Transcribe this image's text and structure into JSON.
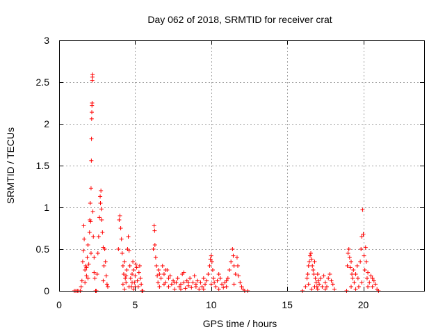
{
  "chart_data": {
    "type": "scatter",
    "title": "Day 062 of 2018, SRMTID for receiver crat",
    "xlabel": "GPS time / hours",
    "ylabel": "SRMTID / TECUs",
    "xlim": [
      0,
      24
    ],
    "ylim": [
      0,
      3
    ],
    "x_ticks": [
      0,
      5,
      10,
      15,
      20
    ],
    "x_tick_labels": [
      "0",
      "5",
      "10",
      "15",
      "20"
    ],
    "y_ticks": [
      0,
      0.5,
      1,
      1.5,
      2,
      2.5,
      3
    ],
    "y_tick_labels": [
      "0",
      "0.5",
      "1",
      "1.5",
      "2",
      "2.5",
      "3"
    ],
    "grid": true,
    "marker": "+",
    "series": [
      {
        "name": "SRMTID",
        "color": "#ff0000",
        "points": [
          [
            1.0,
            0.0
          ],
          [
            1.1,
            0.0
          ],
          [
            1.2,
            0.0
          ],
          [
            1.3,
            0.0
          ],
          [
            1.4,
            0.0
          ],
          [
            1.45,
            0.05
          ],
          [
            1.5,
            0.12
          ],
          [
            1.55,
            0.35
          ],
          [
            1.6,
            0.48
          ],
          [
            1.62,
            0.78
          ],
          [
            1.65,
            0.62
          ],
          [
            1.7,
            0.25
          ],
          [
            1.75,
            0.3
          ],
          [
            1.8,
            0.18
          ],
          [
            1.85,
            0.4
          ],
          [
            1.9,
            0.55
          ],
          [
            1.95,
            0.32
          ],
          [
            2.0,
            0.7
          ],
          [
            2.02,
            0.85
          ],
          [
            2.05,
            1.05
          ],
          [
            2.07,
            0.83
          ],
          [
            2.1,
            0.45
          ],
          [
            2.1,
            1.23
          ],
          [
            2.12,
            1.56
          ],
          [
            2.13,
            1.82
          ],
          [
            2.14,
            2.06
          ],
          [
            2.15,
            2.14
          ],
          [
            2.16,
            2.22
          ],
          [
            2.17,
            2.25
          ],
          [
            2.18,
            2.52
          ],
          [
            2.19,
            2.56
          ],
          [
            2.2,
            2.59
          ],
          [
            2.22,
            0.95
          ],
          [
            2.25,
            0.65
          ],
          [
            2.3,
            0.4
          ],
          [
            2.35,
            0.15
          ],
          [
            2.4,
            0.0
          ],
          [
            2.45,
            0.0
          ],
          [
            2.5,
            0.2
          ],
          [
            2.55,
            0.45
          ],
          [
            2.6,
            0.65
          ],
          [
            2.65,
            0.88
          ],
          [
            2.7,
            1.13
          ],
          [
            2.72,
            1.05
          ],
          [
            2.75,
            1.2
          ],
          [
            2.78,
            0.98
          ],
          [
            2.8,
            0.85
          ],
          [
            2.85,
            0.7
          ],
          [
            2.9,
            0.52
          ],
          [
            2.95,
            0.3
          ],
          [
            3.0,
            0.5
          ],
          [
            3.05,
            0.35
          ],
          [
            3.1,
            0.18
          ],
          [
            3.15,
            0.08
          ],
          [
            3.2,
            0.05
          ],
          [
            1.7,
            0.1
          ],
          [
            1.8,
            0.28
          ],
          [
            1.9,
            0.15
          ],
          [
            2.3,
            0.22
          ],
          [
            2.9,
            0.12
          ],
          [
            3.9,
            0.5
          ],
          [
            3.95,
            0.85
          ],
          [
            4.0,
            0.9
          ],
          [
            4.05,
            0.75
          ],
          [
            4.1,
            0.62
          ],
          [
            4.15,
            0.45
          ],
          [
            4.2,
            0.3
          ],
          [
            4.25,
            0.2
          ],
          [
            4.3,
            0.35
          ],
          [
            4.35,
            0.15
          ],
          [
            4.4,
            0.1
          ],
          [
            4.45,
            0.25
          ],
          [
            4.5,
            0.5
          ],
          [
            4.55,
            0.65
          ],
          [
            4.6,
            0.48
          ],
          [
            4.65,
            0.3
          ],
          [
            4.7,
            0.15
          ],
          [
            4.75,
            0.05
          ],
          [
            4.8,
            0.2
          ],
          [
            4.85,
            0.35
          ],
          [
            4.9,
            0.25
          ],
          [
            4.95,
            0.1
          ],
          [
            5.0,
            0.18
          ],
          [
            5.05,
            0.32
          ],
          [
            5.1,
            0.28
          ],
          [
            5.15,
            0.12
          ],
          [
            5.2,
            0.05
          ],
          [
            5.25,
            0.22
          ],
          [
            5.3,
            0.3
          ],
          [
            5.35,
            0.15
          ],
          [
            5.4,
            0.08
          ],
          [
            5.45,
            0.0
          ],
          [
            5.5,
            0.0
          ],
          [
            4.2,
            0.08
          ],
          [
            4.4,
            0.18
          ],
          [
            4.6,
            0.05
          ],
          [
            4.8,
            0.1
          ],
          [
            5.0,
            0.05
          ],
          [
            4.3,
            0.02
          ],
          [
            4.9,
            0.02
          ],
          [
            6.2,
            0.5
          ],
          [
            6.25,
            0.78
          ],
          [
            6.28,
            0.72
          ],
          [
            6.3,
            0.55
          ],
          [
            6.35,
            0.4
          ],
          [
            6.4,
            0.3
          ],
          [
            6.45,
            0.18
          ],
          [
            6.5,
            0.1
          ],
          [
            6.55,
            0.25
          ],
          [
            6.6,
            0.05
          ],
          [
            6.7,
            0.15
          ],
          [
            6.8,
            0.3
          ],
          [
            6.9,
            0.2
          ],
          [
            7.0,
            0.1
          ],
          [
            7.1,
            0.25
          ],
          [
            7.2,
            0.05
          ],
          [
            7.3,
            0.18
          ],
          [
            7.4,
            0.08
          ],
          [
            7.5,
            0.12
          ],
          [
            7.6,
            0.02
          ],
          [
            7.7,
            0.1
          ],
          [
            7.8,
            0.15
          ],
          [
            7.9,
            0.05
          ],
          [
            8.0,
            0.08
          ],
          [
            8.1,
            0.2
          ],
          [
            8.2,
            0.1
          ],
          [
            8.3,
            0.03
          ],
          [
            8.4,
            0.12
          ],
          [
            8.5,
            0.06
          ],
          [
            8.6,
            0.15
          ],
          [
            8.7,
            0.04
          ],
          [
            8.8,
            0.1
          ],
          [
            8.9,
            0.18
          ],
          [
            9.0,
            0.08
          ],
          [
            9.1,
            0.12
          ],
          [
            9.2,
            0.02
          ],
          [
            9.3,
            0.1
          ],
          [
            9.4,
            0.05
          ],
          [
            9.5,
            0.15
          ],
          [
            9.6,
            0.08
          ],
          [
            9.7,
            0.12
          ],
          [
            9.8,
            0.2
          ],
          [
            9.9,
            0.3
          ],
          [
            9.95,
            0.38
          ],
          [
            10.0,
            0.42
          ],
          [
            10.05,
            0.35
          ],
          [
            10.1,
            0.25
          ],
          [
            10.15,
            0.15
          ],
          [
            10.2,
            0.1
          ],
          [
            10.3,
            0.05
          ],
          [
            10.4,
            0.12
          ],
          [
            10.5,
            0.2
          ],
          [
            10.6,
            0.15
          ],
          [
            10.7,
            0.08
          ],
          [
            10.8,
            0.04
          ],
          [
            10.9,
            0.1
          ],
          [
            11.0,
            0.05
          ],
          [
            11.1,
            0.15
          ],
          [
            11.2,
            0.25
          ],
          [
            11.3,
            0.35
          ],
          [
            11.4,
            0.5
          ],
          [
            11.45,
            0.42
          ],
          [
            11.5,
            0.3
          ],
          [
            11.6,
            0.2
          ],
          [
            11.7,
            0.4
          ],
          [
            11.75,
            0.3
          ],
          [
            11.8,
            0.18
          ],
          [
            11.9,
            0.1
          ],
          [
            12.0,
            0.05
          ],
          [
            12.1,
            0.02
          ],
          [
            12.2,
            0.0
          ],
          [
            12.4,
            0.0
          ],
          [
            6.6,
            0.2
          ],
          [
            6.9,
            0.08
          ],
          [
            7.2,
            0.15
          ],
          [
            7.6,
            0.1
          ],
          [
            8.0,
            0.02
          ],
          [
            8.5,
            0.1
          ],
          [
            9.0,
            0.05
          ],
          [
            9.5,
            0.02
          ],
          [
            10.0,
            0.08
          ],
          [
            10.5,
            0.02
          ],
          [
            11.0,
            0.12
          ],
          [
            11.5,
            0.08
          ],
          [
            8.2,
            0.22
          ],
          [
            7.0,
            0.25
          ],
          [
            16.0,
            0.0
          ],
          [
            16.2,
            0.05
          ],
          [
            16.3,
            0.15
          ],
          [
            16.35,
            0.2
          ],
          [
            16.4,
            0.3
          ],
          [
            16.45,
            0.35
          ],
          [
            16.5,
            0.42
          ],
          [
            16.55,
            0.45
          ],
          [
            16.6,
            0.38
          ],
          [
            16.65,
            0.3
          ],
          [
            16.7,
            0.25
          ],
          [
            16.75,
            0.2
          ],
          [
            16.8,
            0.35
          ],
          [
            16.85,
            0.15
          ],
          [
            16.9,
            0.1
          ],
          [
            16.95,
            0.05
          ],
          [
            17.0,
            0.2
          ],
          [
            17.05,
            0.12
          ],
          [
            17.1,
            0.08
          ],
          [
            17.2,
            0.15
          ],
          [
            17.3,
            0.05
          ],
          [
            17.4,
            0.18
          ],
          [
            17.5,
            0.1
          ],
          [
            17.6,
            0.05
          ],
          [
            17.7,
            0.15
          ],
          [
            17.8,
            0.2
          ],
          [
            17.9,
            0.12
          ],
          [
            18.0,
            0.08
          ],
          [
            18.1,
            0.02
          ],
          [
            16.4,
            0.08
          ],
          [
            16.6,
            0.02
          ],
          [
            16.8,
            0.05
          ],
          [
            17.0,
            0.02
          ],
          [
            17.5,
            0.02
          ],
          [
            18.9,
            0.0
          ],
          [
            18.95,
            0.3
          ],
          [
            19.0,
            0.45
          ],
          [
            19.05,
            0.5
          ],
          [
            19.1,
            0.4
          ],
          [
            19.15,
            0.28
          ],
          [
            19.2,
            0.35
          ],
          [
            19.25,
            0.2
          ],
          [
            19.3,
            0.15
          ],
          [
            19.35,
            0.25
          ],
          [
            19.4,
            0.1
          ],
          [
            19.5,
            0.2
          ],
          [
            19.6,
            0.3
          ],
          [
            19.65,
            0.15
          ],
          [
            19.7,
            0.05
          ],
          [
            19.8,
            0.35
          ],
          [
            19.85,
            0.5
          ],
          [
            19.9,
            0.65
          ],
          [
            19.95,
            0.97
          ],
          [
            20.0,
            0.68
          ],
          [
            20.05,
            0.42
          ],
          [
            20.1,
            0.25
          ],
          [
            20.15,
            0.52
          ],
          [
            20.2,
            0.35
          ],
          [
            20.25,
            0.15
          ],
          [
            20.3,
            0.22
          ],
          [
            20.4,
            0.1
          ],
          [
            20.5,
            0.18
          ],
          [
            20.6,
            0.05
          ],
          [
            20.7,
            0.12
          ],
          [
            20.8,
            0.08
          ],
          [
            20.9,
            0.02
          ],
          [
            21.0,
            0.0
          ],
          [
            19.2,
            0.05
          ],
          [
            19.5,
            0.02
          ],
          [
            19.9,
            0.1
          ],
          [
            20.3,
            0.05
          ],
          [
            20.6,
            0.15
          ]
        ]
      }
    ]
  }
}
